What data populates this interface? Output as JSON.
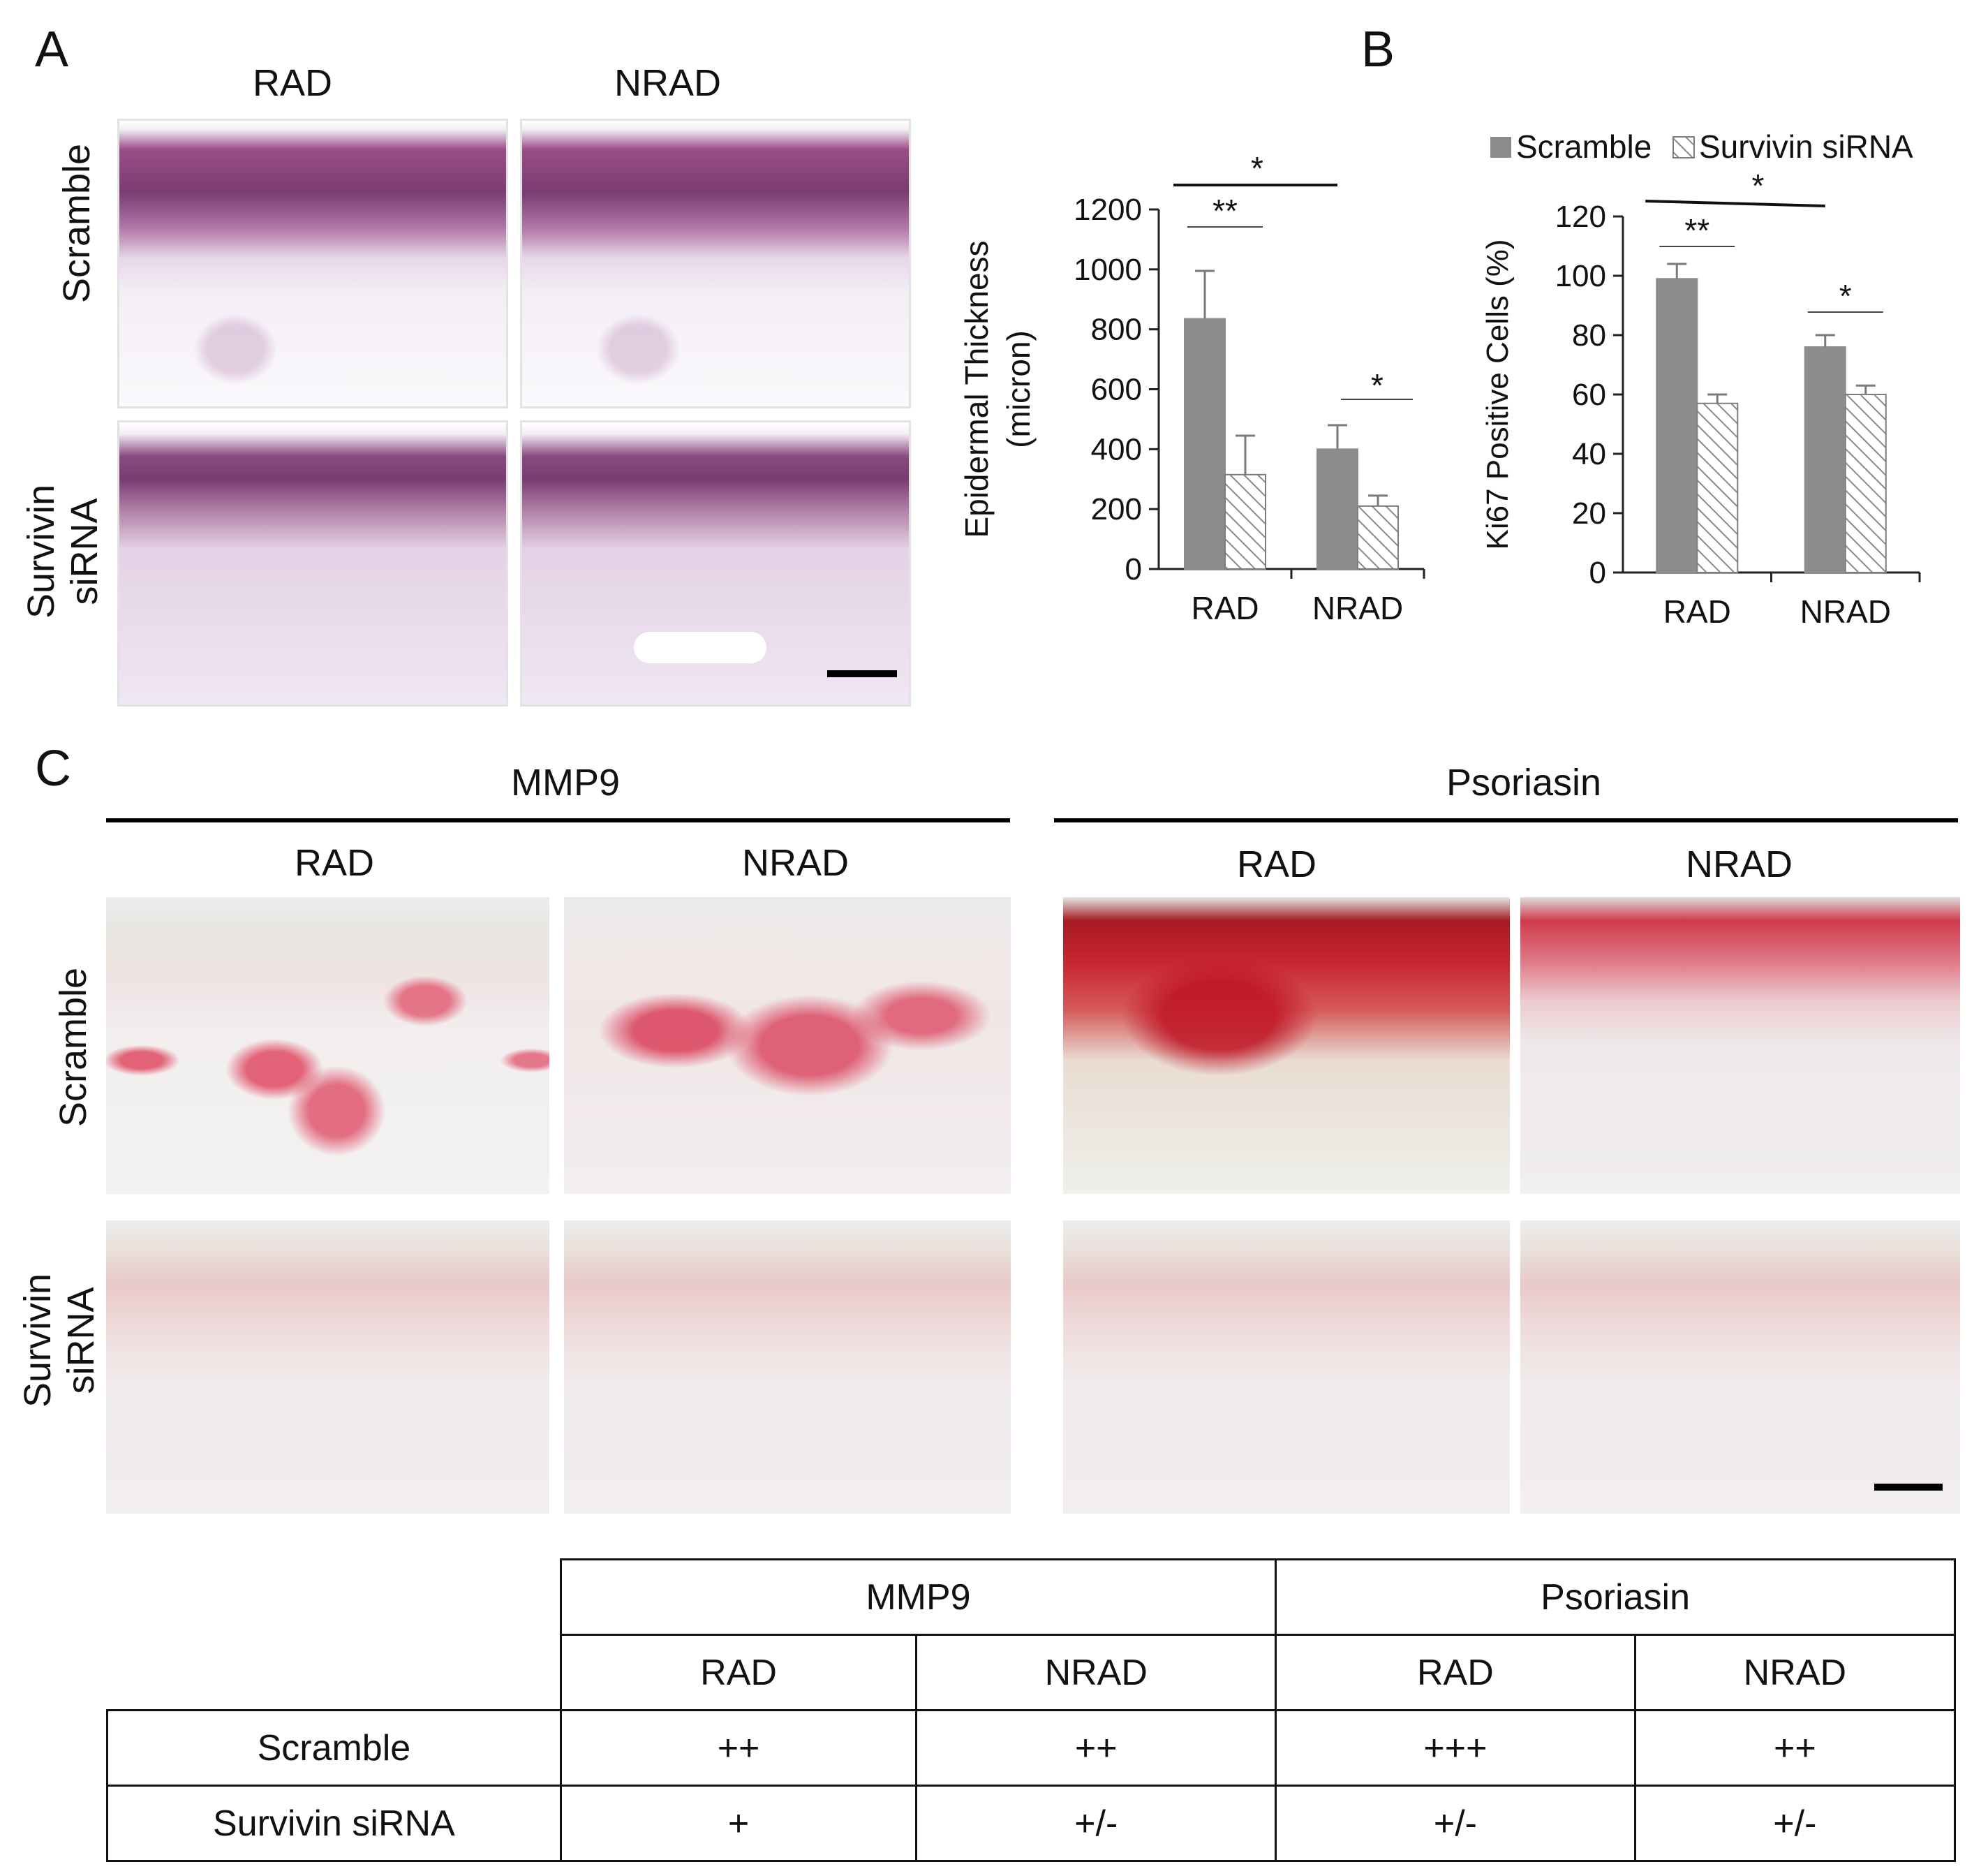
{
  "panels": {
    "a": "A",
    "b": "B",
    "c": "C"
  },
  "panelA": {
    "col_labels": [
      "RAD",
      "NRAD"
    ],
    "row_labels": {
      "scramble": "Scramble",
      "sirna_line1": "Survivin",
      "sirna_line2": "siRNA"
    }
  },
  "panelC": {
    "group_labels": [
      "MMP9",
      "Psoriasin"
    ],
    "col_labels": [
      "RAD",
      "NRAD",
      "RAD",
      "NRAD"
    ],
    "row_labels": {
      "scramble": "Scramble",
      "sirna_line1": "Survivin",
      "sirna_line2": "siRNA"
    }
  },
  "chart_data": [
    {
      "type": "bar",
      "ylabel": "Epidermal Thickness\n(micron)",
      "categories": [
        "RAD",
        "NRAD"
      ],
      "series": [
        {
          "name": "Scramble",
          "values": [
            835,
            400
          ],
          "errors": [
            160,
            80
          ]
        },
        {
          "name": "Survivin siRNA",
          "values": [
            315,
            210
          ],
          "errors": [
            130,
            35
          ]
        }
      ],
      "ylim": [
        0,
        1200
      ],
      "yticks": [
        "0",
        "200",
        "400",
        "600",
        "800",
        "1000",
        "1200"
      ],
      "annotations": [
        "**",
        "*",
        "*"
      ]
    },
    {
      "type": "bar",
      "ylabel": "Ki67 Positive Cells (%)",
      "categories": [
        "RAD",
        "NRAD"
      ],
      "series": [
        {
          "name": "Scramble",
          "values": [
            99,
            76
          ],
          "errors": [
            5,
            4
          ]
        },
        {
          "name": "Survivin siRNA",
          "values": [
            57,
            60
          ],
          "errors": [
            3,
            3
          ]
        }
      ],
      "ylim": [
        0,
        120
      ],
      "yticks": [
        "0",
        "20",
        "40",
        "60",
        "80",
        "100",
        "120"
      ],
      "legend": [
        "Scramble",
        "Survivin siRNA"
      ],
      "annotations": [
        "**",
        "*",
        "*"
      ],
      "colors": {
        "scramble": "#8c8c8c",
        "sirna": "#ffffff"
      }
    }
  ],
  "table": {
    "groups": [
      "MMP9",
      "Psoriasin"
    ],
    "subcols": [
      "RAD",
      "NRAD",
      "RAD",
      "NRAD"
    ],
    "rows": [
      {
        "label": "Scramble",
        "cells": [
          "++",
          "++",
          "+++",
          "++"
        ]
      },
      {
        "label": "Survivin siRNA",
        "cells": [
          "+",
          "+/-",
          "+/-",
          "+/-"
        ]
      }
    ]
  }
}
